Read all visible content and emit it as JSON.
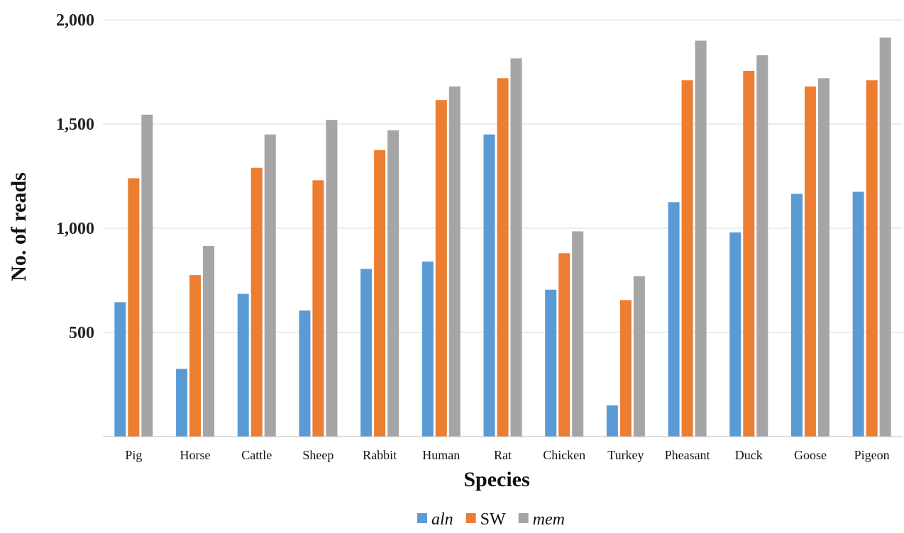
{
  "chart_data": {
    "type": "bar",
    "xlabel": "Species",
    "ylabel": "No. of reads",
    "ylim": [
      0,
      2000
    ],
    "yticks": [
      500,
      1000,
      1500,
      2000
    ],
    "ytick_labels": [
      "500",
      "1,000",
      "1,500",
      "2,000"
    ],
    "grid": true,
    "legend_position": "bottom",
    "categories": [
      "Pig",
      "Horse",
      "Cattle",
      "Sheep",
      "Rabbit",
      "Human",
      "Rat",
      "Chicken",
      "Turkey",
      "Pheasant",
      "Duck",
      "Goose",
      "Pigeon"
    ],
    "series": [
      {
        "name": "aln",
        "italic": true,
        "color": "#5b9bd5",
        "values": [
          645,
          325,
          685,
          605,
          805,
          840,
          1450,
          705,
          150,
          1125,
          980,
          1165,
          1175
        ]
      },
      {
        "name": "SW",
        "italic": false,
        "color": "#ed7d31",
        "values": [
          1240,
          775,
          1290,
          1230,
          1375,
          1615,
          1720,
          880,
          655,
          1710,
          1755,
          1680,
          1710
        ]
      },
      {
        "name": "mem",
        "italic": true,
        "color": "#a5a5a5",
        "values": [
          1545,
          915,
          1450,
          1520,
          1470,
          1680,
          1815,
          985,
          770,
          1900,
          1830,
          1720,
          1915
        ]
      }
    ]
  }
}
